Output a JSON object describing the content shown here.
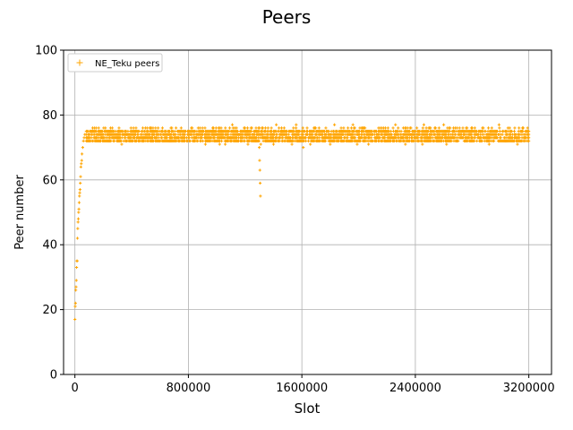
{
  "chart_data": {
    "type": "scatter",
    "title": "Peers",
    "xlabel": "Slot",
    "ylabel": "Peer number",
    "xlim": [
      -80000,
      3360000
    ],
    "ylim": [
      0,
      100
    ],
    "xticks": [
      0,
      800000,
      1600000,
      2400000,
      3200000
    ],
    "xtick_labels": [
      "0",
      "800000",
      "1600000",
      "2400000",
      "3200000"
    ],
    "yticks": [
      0,
      20,
      40,
      60,
      80,
      100
    ],
    "ytick_labels": [
      "0",
      "20",
      "40",
      "60",
      "80",
      "100"
    ],
    "grid": true,
    "legend_position": "top-left",
    "series": [
      {
        "name": "NE_Teku peers",
        "marker": "+",
        "color": "#ffa500",
        "points": [
          [
            0,
            17
          ],
          [
            2000,
            21
          ],
          [
            4000,
            22
          ],
          [
            6000,
            26
          ],
          [
            8000,
            27
          ],
          [
            10000,
            29
          ],
          [
            12000,
            33
          ],
          [
            14000,
            35
          ],
          [
            16000,
            35
          ],
          [
            18000,
            42
          ],
          [
            20000,
            45
          ],
          [
            22000,
            47
          ],
          [
            24000,
            48
          ],
          [
            26000,
            50
          ],
          [
            28000,
            51
          ],
          [
            30000,
            53
          ],
          [
            32000,
            55
          ],
          [
            34000,
            56
          ],
          [
            36000,
            57
          ],
          [
            38000,
            59
          ],
          [
            40000,
            61
          ],
          [
            42000,
            64
          ],
          [
            45000,
            65
          ],
          [
            48000,
            66
          ],
          [
            50000,
            68
          ],
          [
            55000,
            70
          ],
          [
            60000,
            72
          ],
          [
            65000,
            73
          ],
          [
            70000,
            74
          ],
          [
            80000,
            75
          ],
          [
            1300000,
            70
          ],
          [
            1302000,
            66
          ],
          [
            1304000,
            63
          ],
          [
            1306000,
            59
          ],
          [
            1308000,
            55
          ],
          [
            1310000,
            71
          ]
        ],
        "band": {
          "x_start": 80000,
          "x_end": 3200000,
          "y_min": 72,
          "y_max": 75
        },
        "outliers": [
          [
            330000,
            71
          ],
          [
            920000,
            71
          ],
          [
            1020000,
            71
          ],
          [
            1060000,
            71
          ],
          [
            1110000,
            77
          ],
          [
            1220000,
            71
          ],
          [
            1400000,
            71
          ],
          [
            1420000,
            77
          ],
          [
            1530000,
            71
          ],
          [
            1560000,
            77
          ],
          [
            1610000,
            70
          ],
          [
            1660000,
            71
          ],
          [
            1800000,
            71
          ],
          [
            1830000,
            77
          ],
          [
            1960000,
            77
          ],
          [
            1990000,
            71
          ],
          [
            2070000,
            71
          ],
          [
            2260000,
            77
          ],
          [
            2330000,
            71
          ],
          [
            2450000,
            71
          ],
          [
            2460000,
            77
          ],
          [
            2600000,
            77
          ],
          [
            2620000,
            71
          ],
          [
            2920000,
            71
          ],
          [
            2990000,
            77
          ],
          [
            3120000,
            71
          ]
        ]
      }
    ]
  }
}
